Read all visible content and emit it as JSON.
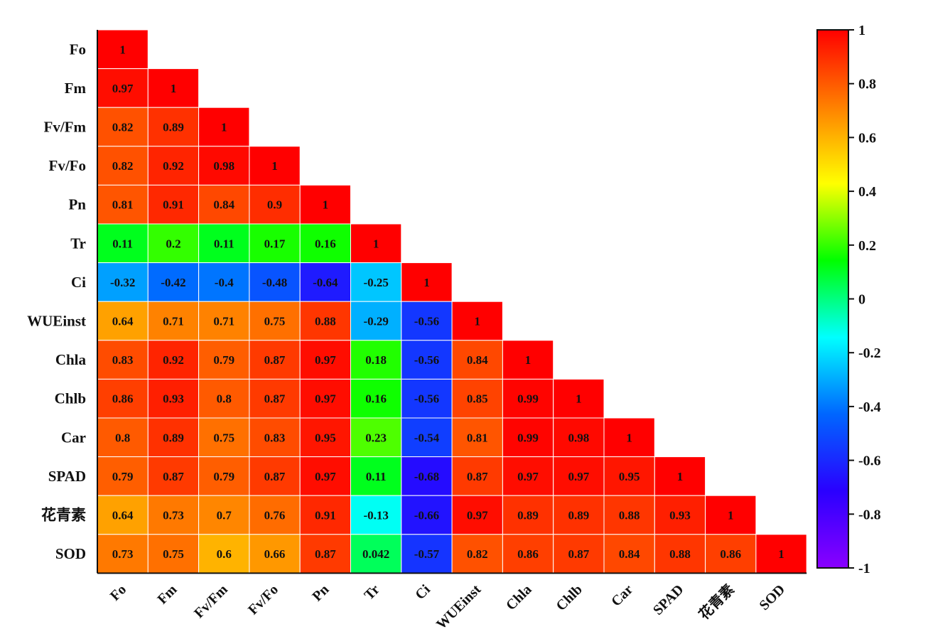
{
  "chart_data": {
    "type": "heatmap",
    "title": "",
    "xlabel": "",
    "ylabel": "",
    "labels": [
      "Fo",
      "Fm",
      "Fv/Fm",
      "Fv/Fo",
      "Pn",
      "Tr",
      "Ci",
      "WUEinst",
      "Chla",
      "Chlb",
      "Car",
      "SPAD",
      "花青素",
      "SOD"
    ],
    "matrix_lower": [
      [
        "1"
      ],
      [
        "0.97",
        "1"
      ],
      [
        "0.82",
        "0.89",
        "1"
      ],
      [
        "0.82",
        "0.92",
        "0.98",
        "1"
      ],
      [
        "0.81",
        "0.91",
        "0.84",
        "0.9",
        "1"
      ],
      [
        "0.11",
        "0.2",
        "0.11",
        "0.17",
        "0.16",
        "1"
      ],
      [
        "-0.32",
        "-0.42",
        "-0.4",
        "-0.48",
        "-0.64",
        "-0.25",
        "1"
      ],
      [
        "0.64",
        "0.71",
        "0.71",
        "0.75",
        "0.88",
        "-0.29",
        "-0.56",
        "1"
      ],
      [
        "0.83",
        "0.92",
        "0.79",
        "0.87",
        "0.97",
        "0.18",
        "-0.56",
        "0.84",
        "1"
      ],
      [
        "0.86",
        "0.93",
        "0.8",
        "0.87",
        "0.97",
        "0.16",
        "-0.56",
        "0.85",
        "0.99",
        "1"
      ],
      [
        "0.8",
        "0.89",
        "0.75",
        "0.83",
        "0.95",
        "0.23",
        "-0.54",
        "0.81",
        "0.99",
        "0.98",
        "1"
      ],
      [
        "0.79",
        "0.87",
        "0.79",
        "0.87",
        "0.97",
        "0.11",
        "-0.68",
        "0.87",
        "0.97",
        "0.97",
        "0.95",
        "1"
      ],
      [
        "0.64",
        "0.73",
        "0.7",
        "0.76",
        "0.91",
        "-0.13",
        "-0.66",
        "0.97",
        "0.89",
        "0.89",
        "0.88",
        "0.93",
        "1"
      ],
      [
        "0.73",
        "0.75",
        "0.6",
        "0.66",
        "0.87",
        "0.042",
        "-0.57",
        "0.82",
        "0.86",
        "0.87",
        "0.84",
        "0.88",
        "0.86",
        "1"
      ]
    ],
    "colorbar": {
      "range": [
        -1,
        1
      ],
      "ticks": [
        "1",
        "0.8",
        "0.6",
        "0.4",
        "0.2",
        "0",
        "-0.2",
        "-0.4",
        "-0.6",
        "-0.8",
        "-1"
      ],
      "colors": [
        "#8a00ff",
        "#2a00ff",
        "#0066ff",
        "#00ffff",
        "#00ff00",
        "#ffff00",
        "#ff8000",
        "#ff0000"
      ]
    },
    "grid": false,
    "legend": "right"
  }
}
